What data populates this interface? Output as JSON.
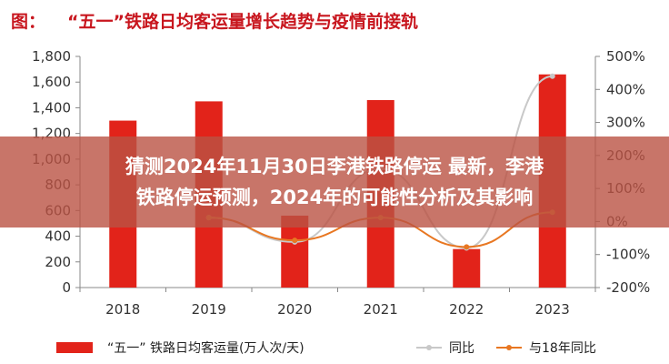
{
  "figure_label": "图：",
  "chart_data": {
    "type": "bar",
    "title": "“五一”铁路日均客运量增长趋势与疫情前接轨",
    "categories": [
      "2018",
      "2019",
      "2020",
      "2021",
      "2022",
      "2023"
    ],
    "series": [
      {
        "name": "“五一” 铁路日均客运量(万人次/天)",
        "type": "bar",
        "axis": "left",
        "color": "#e2231a",
        "values": [
          1300,
          1450,
          560,
          1460,
          300,
          1660
        ]
      },
      {
        "name": "同比",
        "type": "line",
        "axis": "right",
        "color": "#c8c8c8",
        "values": [
          null,
          12,
          -62,
          160,
          -80,
          440
        ]
      },
      {
        "name": "与18年同比",
        "type": "line",
        "axis": "right",
        "color": "#e87722",
        "values": [
          null,
          12,
          -57,
          12,
          -77,
          28
        ]
      }
    ],
    "y_left": {
      "min": 0,
      "max": 1800,
      "step": 200,
      "tick_labels": [
        "0",
        "200",
        "400",
        "600",
        "800",
        "1,000",
        "1,200",
        "1,400",
        "1,600",
        "1,800"
      ]
    },
    "y_right": {
      "min": -200,
      "max": 500,
      "step": 100,
      "tick_labels": [
        "-200%",
        "-100%",
        "0%",
        "100%",
        "200%",
        "300%",
        "400%",
        "500%"
      ]
    },
    "grid": false,
    "legend_position": "bottom"
  },
  "overlay": {
    "line1": "猜测2024年11月30日李港铁路停运 最新，李港",
    "line2": "铁路停运预测，2024年的可能性分析及其影响"
  }
}
